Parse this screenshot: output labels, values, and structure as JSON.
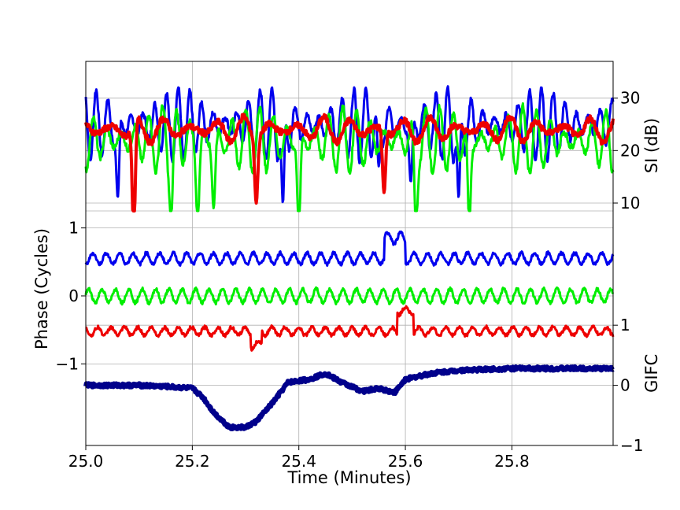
{
  "chart_data": {
    "type": "line",
    "x_axis": {
      "label": "Time (Minutes)",
      "range": [
        25.0,
        25.99
      ],
      "ticks": [
        25.0,
        25.2,
        25.4,
        25.6,
        25.8
      ],
      "tick_labels": [
        "25.0",
        "25.2",
        "25.4",
        "25.6",
        "25.8"
      ],
      "grid": true
    },
    "si_axis": {
      "label": "SI (dB)",
      "side": "right",
      "range": [
        8.5,
        37
      ],
      "ticks": [
        10,
        20,
        30
      ],
      "tick_labels": [
        "10",
        "20",
        "30"
      ]
    },
    "phase_axis": {
      "label": "Phase (Cycles)",
      "side": "left",
      "range": [
        -2.2,
        1.25
      ],
      "ticks": [
        1,
        0,
        -1
      ],
      "tick_labels": [
        "1",
        "0",
        "−1"
      ]
    },
    "gifc_axis": {
      "label": "GIFC",
      "side": "right",
      "range": [
        -1,
        2.9
      ],
      "ticks": [
        1,
        0,
        -1
      ],
      "tick_labels": [
        "1",
        "0",
        "−1"
      ]
    },
    "si_series": [
      {
        "color": "#0000ee",
        "baseline": 25,
        "amplitude": 7,
        "period": 0.022,
        "dips": [
          [
            25.06,
            11
          ],
          [
            25.37,
            10
          ],
          [
            25.55,
            17
          ],
          [
            25.61,
            14
          ],
          [
            25.7,
            11
          ]
        ]
      },
      {
        "color": "#00ee00",
        "baseline": 22,
        "amplitude": 6.5,
        "period": 0.026,
        "dips": [
          [
            25.16,
            7
          ],
          [
            25.21,
            6
          ],
          [
            25.24,
            9
          ],
          [
            25.4,
            5
          ],
          [
            25.62,
            5
          ],
          [
            25.72,
            6
          ]
        ]
      },
      {
        "color": "#ee0000",
        "baseline": 24,
        "amplitude": 2.5,
        "period": 0.05,
        "dips": [
          [
            25.09,
            4
          ],
          [
            25.32,
            10
          ],
          [
            25.56,
            12
          ]
        ]
      }
    ],
    "phase_series": [
      {
        "color": "#0000ee",
        "offset": 0.55,
        "amplitude": 0.08
      },
      {
        "color": "#00ee00",
        "offset": 0.0,
        "amplitude": 0.1
      },
      {
        "color": "#ee0000",
        "offset": -0.52,
        "amplitude": 0.06
      }
    ],
    "gifc_series": {
      "color": "#00008b",
      "points": [
        [
          25.0,
          0.0
        ],
        [
          25.1,
          0.0
        ],
        [
          25.15,
          -0.02
        ],
        [
          25.2,
          -0.05
        ],
        [
          25.22,
          -0.2
        ],
        [
          25.24,
          -0.45
        ],
        [
          25.27,
          -0.7
        ],
        [
          25.3,
          -0.7
        ],
        [
          25.32,
          -0.6
        ],
        [
          25.35,
          -0.3
        ],
        [
          25.38,
          0.05
        ],
        [
          25.42,
          0.1
        ],
        [
          25.45,
          0.2
        ],
        [
          25.48,
          0.05
        ],
        [
          25.52,
          -0.1
        ],
        [
          25.55,
          -0.05
        ],
        [
          25.58,
          -0.12
        ],
        [
          25.6,
          0.1
        ],
        [
          25.65,
          0.2
        ],
        [
          25.7,
          0.25
        ],
        [
          25.8,
          0.28
        ],
        [
          25.99,
          0.28
        ]
      ]
    },
    "legend": "none"
  }
}
